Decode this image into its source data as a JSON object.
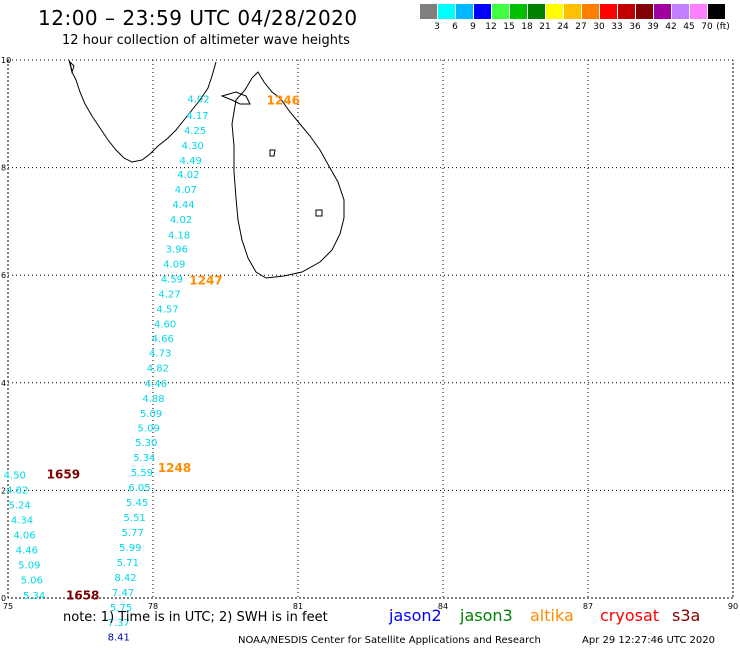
{
  "header": {
    "title": "12:00 – 23:59 UTC 04/28/2020",
    "subtitle": "12 hour collection of altimeter wave heights"
  },
  "color_scale": {
    "unit": "(ft)",
    "colors": [
      "#7f7f7f",
      "#00ffff",
      "#00b8ff",
      "#0000ff",
      "#40ff40",
      "#00c000",
      "#008000",
      "#ffff00",
      "#ffc000",
      "#ff8000",
      "#ff0000",
      "#c00000",
      "#800000",
      "#a000a0",
      "#c080ff",
      "#ff80ff",
      "#000000"
    ],
    "labels": [
      "3",
      "6",
      "9",
      "12",
      "15",
      "18",
      "21",
      "24",
      "27",
      "30",
      "33",
      "36",
      "39",
      "42",
      "45",
      "70"
    ]
  },
  "axes": {
    "x_ticks": [
      "75",
      "78",
      "81",
      "84",
      "87",
      "90"
    ],
    "y_ticks": [
      "0",
      "2",
      "4",
      "6",
      "8",
      "10"
    ]
  },
  "chart_data": {
    "type": "scatter",
    "xlim": [
      75,
      90
    ],
    "ylim": [
      0,
      10
    ],
    "grid": true,
    "point_color": "#00d8e8",
    "passes": [
      {
        "points": [
          {
            "x": 79.0,
            "y": 9.28,
            "v": "4.02"
          },
          {
            "x": 78.98,
            "y": 8.98,
            "v": "4.17"
          },
          {
            "x": 78.93,
            "y": 8.7,
            "v": "4.25"
          },
          {
            "x": 78.88,
            "y": 8.42,
            "v": "4.30"
          },
          {
            "x": 78.84,
            "y": 8.14,
            "v": "4.49"
          },
          {
            "x": 78.79,
            "y": 7.88,
            "v": "4.02"
          },
          {
            "x": 78.74,
            "y": 7.6,
            "v": "4.07"
          },
          {
            "x": 78.69,
            "y": 7.32,
            "v": "4.44"
          },
          {
            "x": 78.64,
            "y": 7.04,
            "v": "4.02"
          },
          {
            "x": 78.6,
            "y": 6.76,
            "v": "4.18"
          },
          {
            "x": 78.55,
            "y": 6.5,
            "v": "3.96"
          },
          {
            "x": 78.5,
            "y": 6.22,
            "v": "4.09"
          },
          {
            "x": 78.45,
            "y": 5.94,
            "v": "4.59"
          },
          {
            "x": 78.4,
            "y": 5.66,
            "v": "4.27"
          },
          {
            "x": 78.36,
            "y": 5.38,
            "v": "4.57"
          },
          {
            "x": 78.31,
            "y": 5.1,
            "v": "4.60"
          },
          {
            "x": 78.26,
            "y": 4.83,
            "v": "4.66"
          },
          {
            "x": 78.21,
            "y": 4.56,
            "v": "4.73"
          },
          {
            "x": 78.16,
            "y": 4.28,
            "v": "4.82"
          },
          {
            "x": 78.12,
            "y": 4.0,
            "v": "4.46"
          },
          {
            "x": 78.07,
            "y": 3.72,
            "v": "4.88"
          },
          {
            "x": 78.02,
            "y": 3.44,
            "v": "5.09"
          },
          {
            "x": 77.97,
            "y": 3.17,
            "v": "5.09"
          },
          {
            "x": 77.92,
            "y": 2.9,
            "v": "5.30"
          },
          {
            "x": 77.88,
            "y": 2.62,
            "v": "5.34"
          },
          {
            "x": 77.83,
            "y": 2.34,
            "v": "5.59"
          },
          {
            "x": 77.78,
            "y": 2.06,
            "v": "6.05"
          },
          {
            "x": 77.73,
            "y": 1.78,
            "v": "5.45"
          },
          {
            "x": 77.68,
            "y": 1.51,
            "v": "5.51"
          },
          {
            "x": 77.64,
            "y": 1.23,
            "v": "5.77"
          },
          {
            "x": 77.59,
            "y": 0.95,
            "v": "5.99"
          },
          {
            "x": 77.54,
            "y": 0.67,
            "v": "5.71"
          },
          {
            "x": 77.49,
            "y": 0.39,
            "v": "8.42"
          },
          {
            "x": 77.44,
            "y": 0.11,
            "v": "7.47"
          },
          {
            "x": 77.4,
            "y": -0.17,
            "v": "5.75"
          },
          {
            "x": 77.35,
            "y": -0.45,
            "v": "7.37"
          }
        ]
      },
      {
        "points": [
          {
            "x": 75.2,
            "y": 2.3,
            "v": "4.50"
          },
          {
            "x": 75.25,
            "y": 2.02,
            "v": "4.82"
          },
          {
            "x": 75.3,
            "y": 1.74,
            "v": "5.24"
          },
          {
            "x": 75.35,
            "y": 1.46,
            "v": "4.34"
          },
          {
            "x": 75.4,
            "y": 1.18,
            "v": "4.06"
          },
          {
            "x": 75.45,
            "y": 0.9,
            "v": "4.46"
          },
          {
            "x": 75.5,
            "y": 0.62,
            "v": "5.09"
          },
          {
            "x": 75.55,
            "y": 0.34,
            "v": "5.06"
          },
          {
            "x": 75.6,
            "y": 0.06,
            "v": "5.34"
          }
        ]
      }
    ],
    "extra_value": {
      "x": 77.35,
      "y": -0.72,
      "v": "8.41",
      "color": "#0000c0"
    },
    "time_labels": [
      {
        "text": "1246",
        "x": 80.35,
        "y": 9.25,
        "color": "#ff8c00"
      },
      {
        "text": "1247",
        "x": 78.75,
        "y": 5.9,
        "color": "#ff8c00"
      },
      {
        "text": "1248",
        "x": 78.1,
        "y": 2.42,
        "color": "#ff8c00"
      },
      {
        "text": "1659",
        "x": 75.8,
        "y": 2.3,
        "color": "#800000"
      },
      {
        "text": "1658",
        "x": 76.2,
        "y": 0.05,
        "color": "#800000"
      }
    ]
  },
  "footer": {
    "note": "note: 1) Time is in UTC; 2) SWH is in feet",
    "satellites": [
      {
        "name": "jason2",
        "color": "#0000ff"
      },
      {
        "name": "jason3",
        "color": "#008000"
      },
      {
        "name": "altika",
        "color": "#ff8c00"
      },
      {
        "name": "cryosat",
        "color": "#ff0000"
      },
      {
        "name": "s3a",
        "color": "#800000"
      }
    ],
    "credit": "NOAA/NESDIS Center for Satellite Applications and Research",
    "timestamp": "Apr 29 12:27:46 UTC 2020"
  }
}
